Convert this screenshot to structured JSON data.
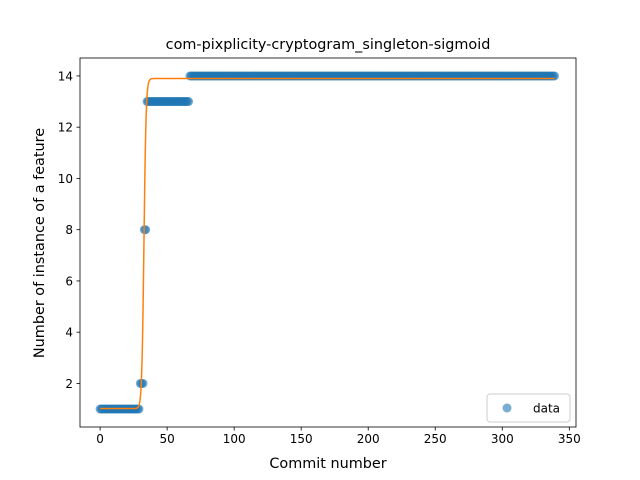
{
  "chart_data": {
    "type": "scatter",
    "title": "com-pixplicity-cryptogram_singleton-sigmoid",
    "xlabel": "Commit number",
    "ylabel": "Number of instance of a feature",
    "xlim": [
      -15,
      355
    ],
    "ylim": [
      0.3,
      14.7
    ],
    "xticks": [
      0,
      50,
      100,
      150,
      200,
      250,
      300,
      350
    ],
    "yticks": [
      2,
      4,
      6,
      8,
      10,
      12,
      14
    ],
    "grid": false,
    "legend": {
      "placement": "lower right",
      "entries": [
        "data"
      ]
    },
    "colors": {
      "data": "#1f77b4",
      "fit": "#ff7f0e"
    },
    "series": [
      {
        "name": "data",
        "kind": "scatter",
        "segments": [
          {
            "x_from": 0,
            "x_to": 29,
            "y": 1
          },
          {
            "x_from": 30,
            "x_to": 32,
            "y": 2
          },
          {
            "x_from": 33,
            "x_to": 34,
            "y": 8
          },
          {
            "x_from": 35,
            "x_to": 66,
            "y": 13
          },
          {
            "x_from": 67,
            "x_to": 339,
            "y": 14
          }
        ]
      },
      {
        "kind": "line",
        "model": "sigmoid",
        "params": {
          "bottom": 1.02,
          "top": 13.9,
          "x0": 32.7,
          "k": 1.25
        },
        "x_range": [
          0,
          339
        ]
      }
    ]
  }
}
